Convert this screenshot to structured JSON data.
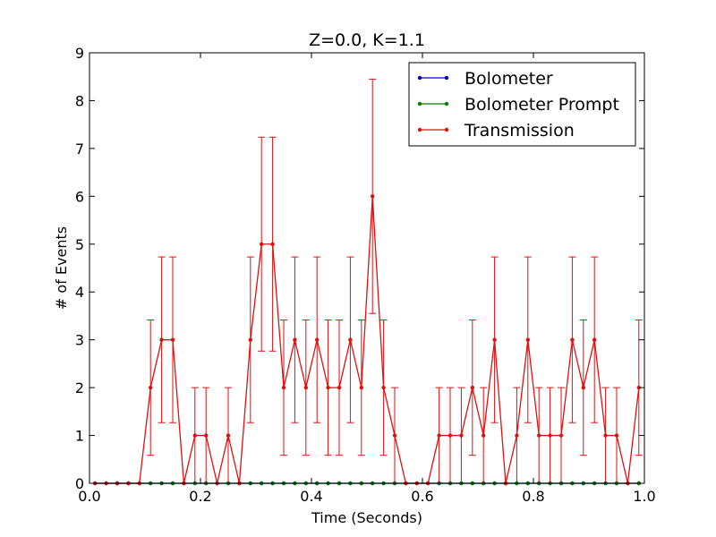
{
  "chart_data": {
    "type": "line",
    "title": "Z=0.0, K=1.1",
    "xlabel": "Time (Seconds)",
    "ylabel": "# of Events",
    "xlim": [
      0.0,
      1.0
    ],
    "ylim": [
      0,
      9
    ],
    "xticks": [
      0.0,
      0.2,
      0.4,
      0.6,
      0.8,
      1.0
    ],
    "xtick_labels": [
      "0.0",
      "0.2",
      "0.4",
      "0.6",
      "0.8",
      "1.0"
    ],
    "yticks": [
      0,
      1,
      2,
      3,
      4,
      5,
      6,
      7,
      8,
      9
    ],
    "ytick_labels": [
      "0",
      "1",
      "2",
      "3",
      "4",
      "5",
      "6",
      "7",
      "8",
      "9"
    ],
    "grid": false,
    "legend_position": "top-right",
    "x": [
      0.01,
      0.03,
      0.05,
      0.07,
      0.09,
      0.11,
      0.13,
      0.15,
      0.17,
      0.19,
      0.21,
      0.23,
      0.25,
      0.27,
      0.29,
      0.31,
      0.33,
      0.35,
      0.37,
      0.39,
      0.41,
      0.43,
      0.45,
      0.47,
      0.49,
      0.51,
      0.53,
      0.55,
      0.57,
      0.59,
      0.61,
      0.63,
      0.65,
      0.67,
      0.69,
      0.71,
      0.73,
      0.75,
      0.77,
      0.79,
      0.81,
      0.83,
      0.85,
      0.87,
      0.89,
      0.91,
      0.93,
      0.95,
      0.97,
      0.99
    ],
    "series": [
      {
        "name": "Bolometer",
        "color": "#0000cc",
        "values": [
          0,
          0,
          0,
          0,
          0,
          0,
          0,
          0,
          0,
          0,
          0,
          0,
          0,
          0,
          0,
          0,
          0,
          0,
          0,
          0,
          0,
          0,
          0,
          0,
          0,
          0,
          0,
          0,
          0,
          0,
          0,
          0,
          0,
          0,
          0,
          0,
          0,
          0,
          0,
          0,
          0,
          0,
          0,
          0,
          0,
          0,
          0,
          0,
          0,
          0
        ],
        "error_bars": false
      },
      {
        "name": "Bolometer Prompt",
        "color": "#008000",
        "values": [
          0,
          0,
          0,
          0,
          0,
          0,
          0,
          0,
          0,
          0,
          0,
          0,
          0,
          0,
          0,
          0,
          0,
          0,
          0,
          0,
          0,
          0,
          0,
          0,
          0,
          0,
          0,
          0,
          0,
          0,
          0,
          0,
          0,
          0,
          0,
          0,
          0,
          0,
          0,
          0,
          0,
          0,
          0,
          0,
          0,
          0,
          0,
          0,
          0,
          0
        ],
        "error_bars": false
      },
      {
        "name": "Transmission",
        "color": "#dd1111",
        "values": [
          0,
          0,
          0,
          0,
          0,
          2,
          3,
          3,
          0,
          1,
          1,
          0,
          1,
          0,
          3,
          5,
          5,
          2,
          3,
          2,
          3,
          2,
          2,
          3,
          2,
          6,
          2,
          1,
          0,
          0,
          0,
          1,
          1,
          1,
          2,
          1,
          3,
          0,
          1,
          3,
          1,
          1,
          1,
          3,
          2,
          3,
          1,
          1,
          0,
          2
        ],
        "error_bars": true
      }
    ]
  }
}
